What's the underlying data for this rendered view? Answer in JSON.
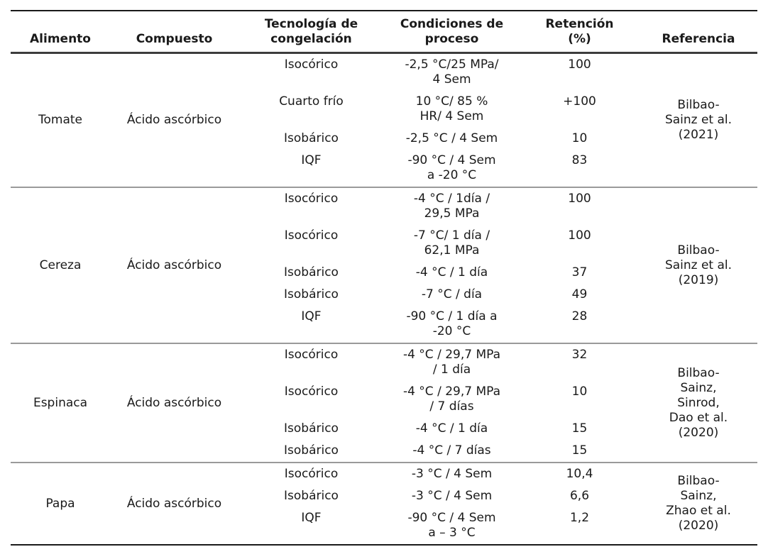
{
  "colors": {
    "text": "#1a1a1a",
    "rule_outer": "#1a1a1a",
    "rule_header": "#3d3d3d",
    "rule_section": "#9a9a9a"
  },
  "table": {
    "headers": {
      "food": "Alimento",
      "compound": "Compuesto",
      "technology": "Tecnología de\ncongelación",
      "conditions": "Condiciones de\nproceso",
      "retention": "Retención\n(%)",
      "reference": "Referencia"
    },
    "sections": [
      {
        "food": "Tomate",
        "compound": "Ácido ascórbico",
        "reference": "Bilbao-\nSainz et al.\n(2021)",
        "rows": [
          {
            "technology": "Isocórico",
            "conditions": "-2,5 °C/25 MPa/\n4 Sem",
            "retention": "100"
          },
          {
            "technology": "Cuarto frío",
            "conditions": "10 °C/ 85 %\nHR/ 4 Sem",
            "retention": "+100"
          },
          {
            "technology": "Isobárico",
            "conditions": "-2,5 °C / 4 Sem",
            "retention": "10"
          },
          {
            "technology": "IQF",
            "conditions": "-90 °C / 4 Sem\na -20 °C",
            "retention": "83"
          }
        ]
      },
      {
        "food": "Cereza",
        "compound": "Ácido ascórbico",
        "reference": "Bilbao-\nSainz et al.\n(2019)",
        "rows": [
          {
            "technology": "Isocórico",
            "conditions": "-4 °C / 1día /\n29,5 MPa",
            "retention": "100"
          },
          {
            "technology": "Isocórico",
            "conditions": "-7 °C/ 1 día /\n62,1 MPa",
            "retention": "100"
          },
          {
            "technology": "Isobárico",
            "conditions": "-4 °C / 1 día",
            "retention": "37"
          },
          {
            "technology": "Isobárico",
            "conditions": "-7 °C / día",
            "retention": "49"
          },
          {
            "technology": "IQF",
            "conditions": "-90 °C / 1 día a\n-20 °C",
            "retention": "28"
          }
        ]
      },
      {
        "food": "Espinaca",
        "compound": "Ácido ascórbico",
        "reference": "Bilbao-\nSainz,\nSinrod,\nDao et al.\n(2020)",
        "rows": [
          {
            "technology": "Isocórico",
            "conditions": "-4 °C / 29,7 MPa\n/ 1 día",
            "retention": "32"
          },
          {
            "technology": "Isocórico",
            "conditions": "-4 °C / 29,7 MPa\n/ 7 días",
            "retention": "10"
          },
          {
            "technology": "Isobárico",
            "conditions": "-4 °C / 1 día",
            "retention": "15"
          },
          {
            "technology": "Isobárico",
            "conditions": "-4 °C / 7 días",
            "retention": "15"
          }
        ]
      },
      {
        "food": "Papa",
        "compound": "Ácido ascórbico",
        "reference": "Bilbao-\nSainz,\nZhao et al.\n(2020)",
        "rows": [
          {
            "technology": "Isocórico",
            "conditions": "-3 °C / 4 Sem",
            "retention": "10,4"
          },
          {
            "technology": "Isobárico",
            "conditions": "-3 °C / 4 Sem",
            "retention": "6,6"
          },
          {
            "technology": "IQF",
            "conditions": "-90 °C / 4 Sem\na – 3 °C",
            "retention": "1,2"
          }
        ]
      }
    ]
  }
}
